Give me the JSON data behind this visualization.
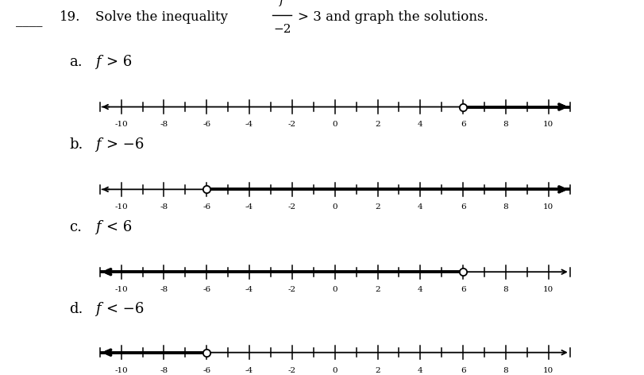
{
  "options": [
    {
      "label": "a.",
      "expr_f": "f",
      "expr_rest": "> 6",
      "circle_at": 6,
      "direction": "right"
    },
    {
      "label": "b.",
      "expr_f": "f",
      "expr_rest": "> −6",
      "circle_at": -6,
      "direction": "right"
    },
    {
      "label": "c.",
      "expr_f": "f",
      "expr_rest": "< 6",
      "circle_at": 6,
      "direction": "left"
    },
    {
      "label": "d.",
      "expr_f": "f",
      "expr_rest": "< −6",
      "circle_at": -6,
      "direction": "left"
    }
  ],
  "tick_every": 1,
  "tick_label_positions": [
    -10,
    -8,
    -6,
    -4,
    -2,
    0,
    2,
    4,
    6,
    8,
    10
  ],
  "tick_label_strings": [
    "-10",
    "-8",
    "-6",
    "-4",
    "-2",
    "0",
    "2",
    "4",
    "6",
    "8",
    "10"
  ],
  "data_min": -11,
  "data_max": 11,
  "background": "#ffffff",
  "text_color": "#000000"
}
